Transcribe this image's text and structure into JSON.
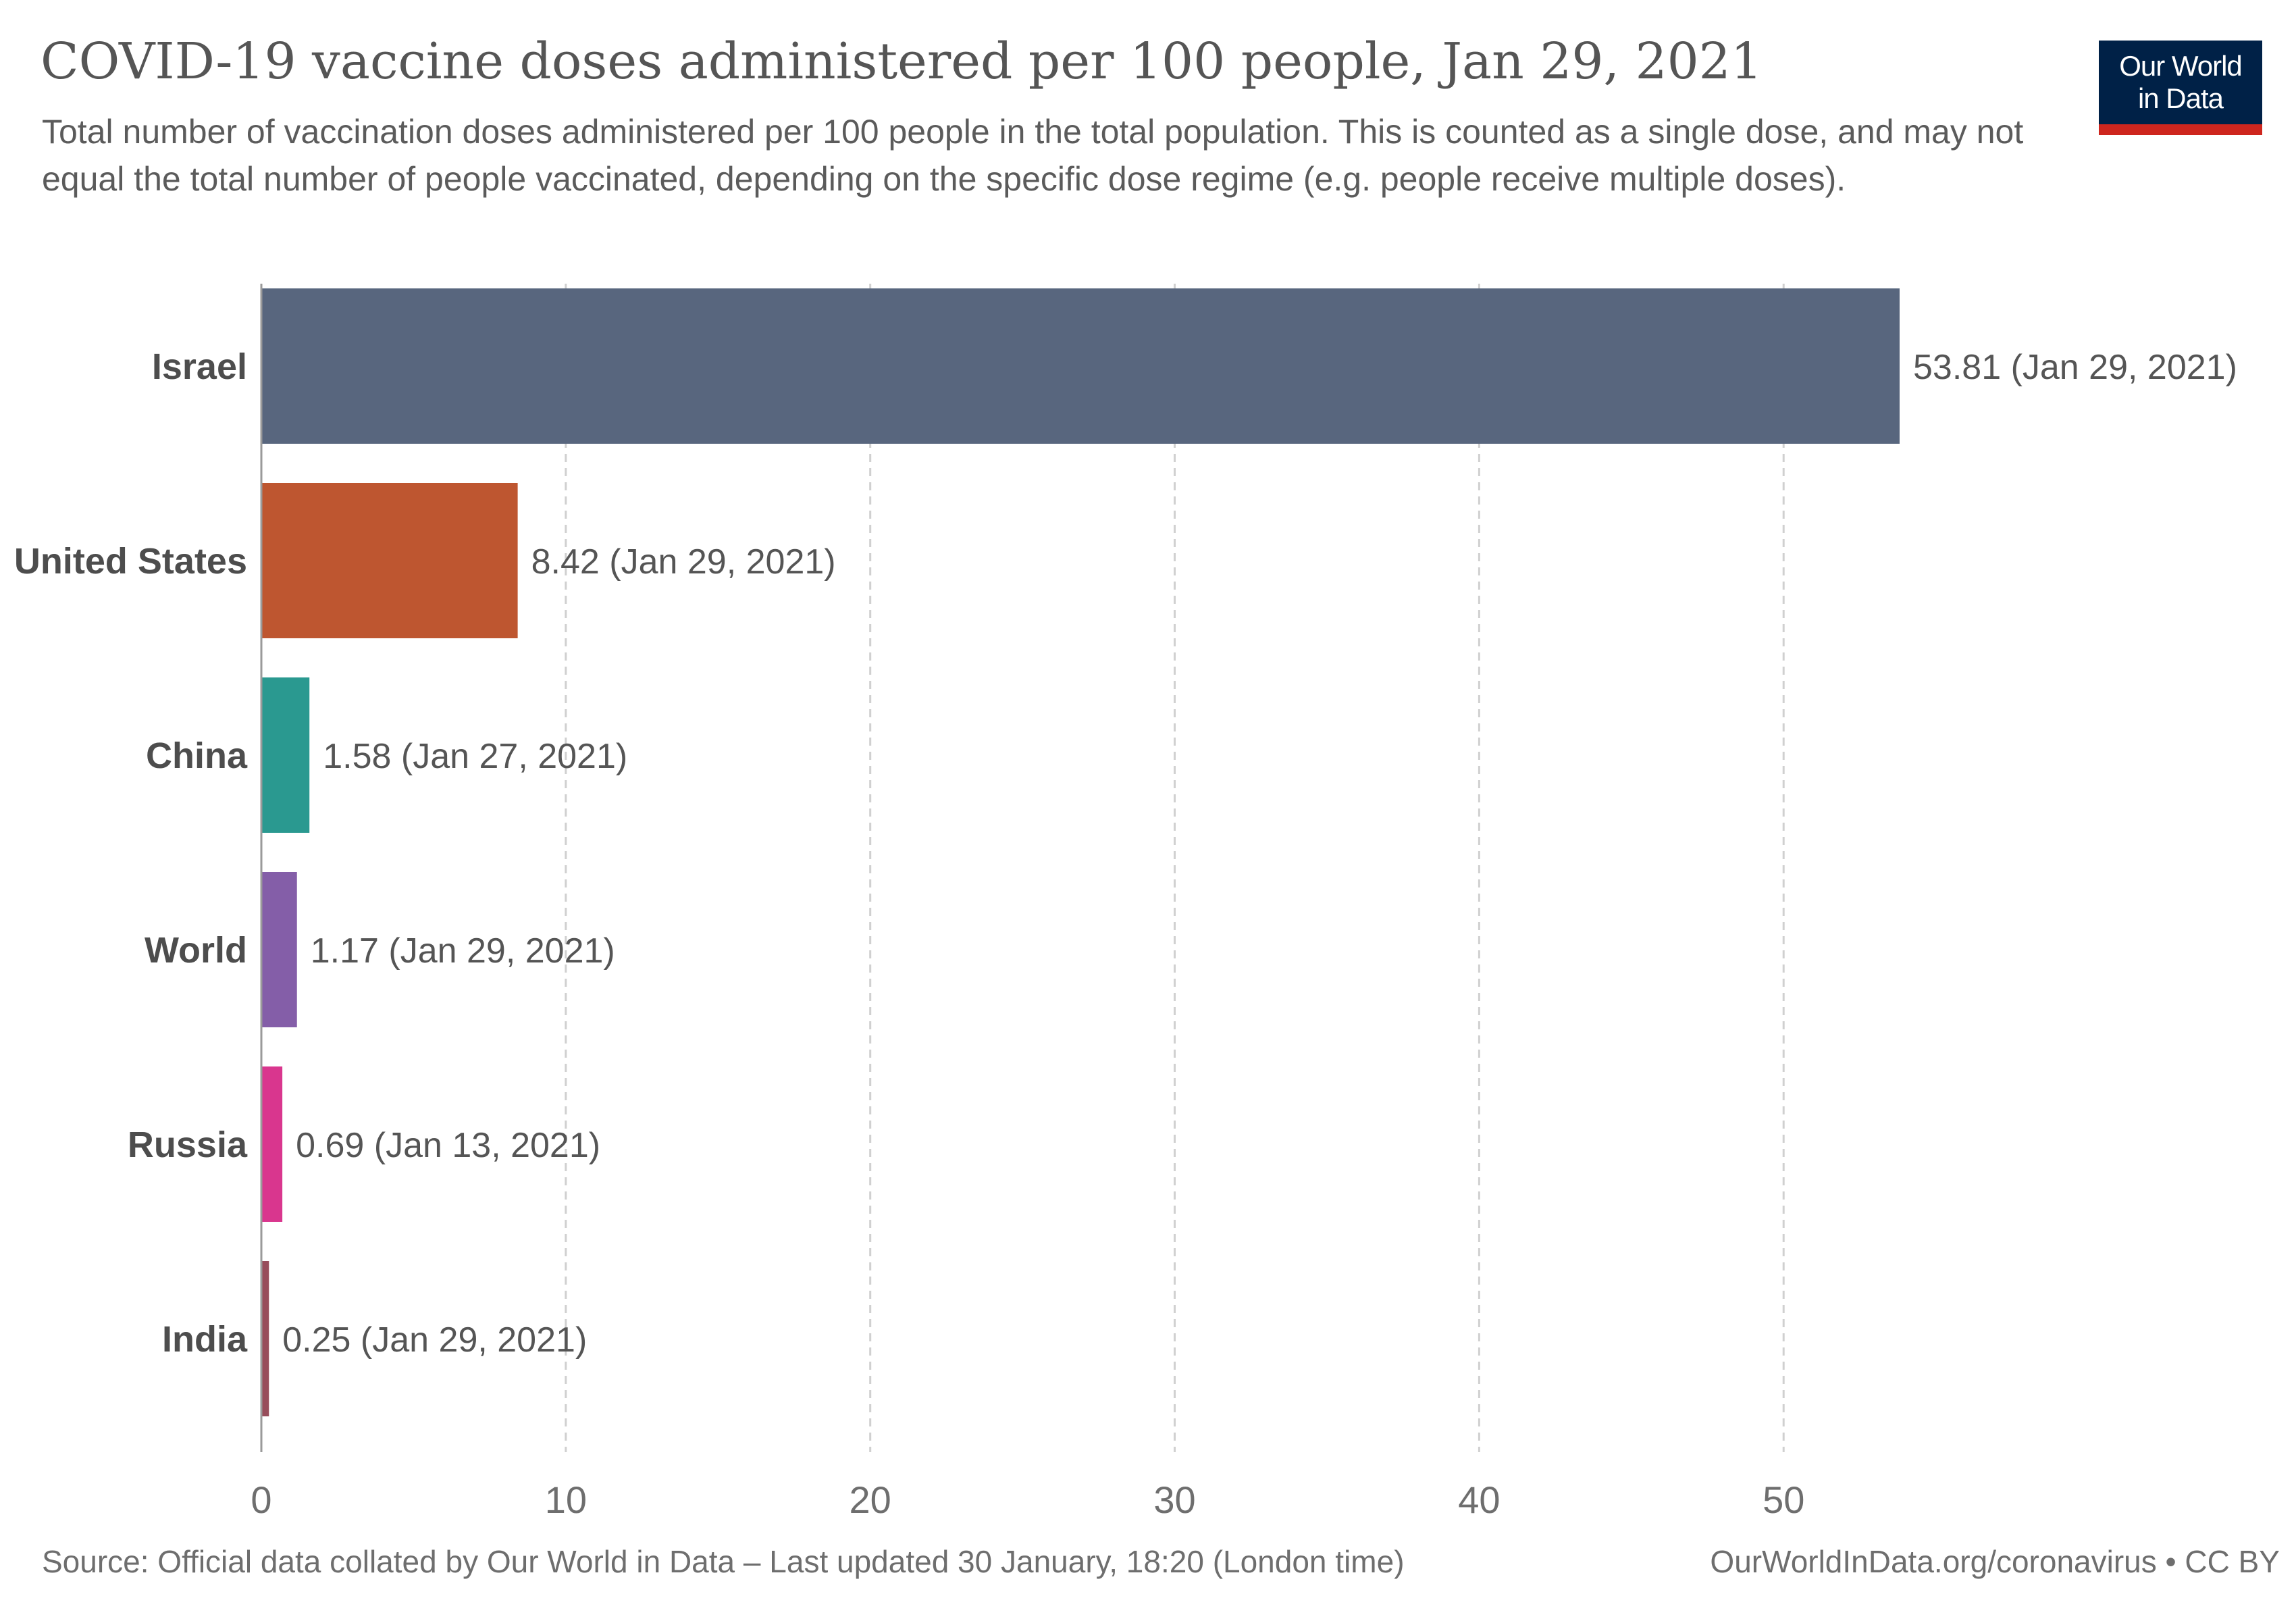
{
  "header": {
    "title": "COVID-19 vaccine doses administered per 100 people, Jan 29, 2021",
    "subtitle": "Total number of vaccination doses administered per 100 people in the total population. This is counted as a single dose, and may not equal the total number of people vaccinated, depending on the specific dose regime (e.g. people receive multiple doses).",
    "logo_line1": "Our World",
    "logo_line2": "in Data"
  },
  "footer": {
    "source": "Source: Official data collated by Our World in Data – Last updated 30 January, 18:20 (London time)",
    "link": "OurWorldInData.org/coronavirus • CC BY"
  },
  "colors": {
    "logo_background": "#002147",
    "logo_accent": "#ce261e",
    "grid": "#d0d0d0",
    "axis": "#9a9a9a",
    "label": "#4d4d4d",
    "value_label": "#555555"
  },
  "chart_data": {
    "type": "bar",
    "orientation": "horizontal",
    "categories": [
      "Israel",
      "United States",
      "China",
      "World",
      "Russia",
      "India"
    ],
    "values": [
      53.81,
      8.42,
      1.58,
      1.17,
      0.69,
      0.25
    ],
    "value_labels": [
      "53.81 (Jan 29, 2021)",
      "8.42 (Jan 29, 2021)",
      "1.58 (Jan 27, 2021)",
      "1.17 (Jan 29, 2021)",
      "0.69 (Jan 13, 2021)",
      "0.25 (Jan 29, 2021)"
    ],
    "bar_colors": [
      "#58667e",
      "#be5630",
      "#2a9990",
      "#845ea8",
      "#d9368e",
      "#984d5b"
    ],
    "xlim": [
      0,
      60
    ],
    "x_ticks": [
      0,
      10,
      20,
      30,
      40,
      50
    ],
    "grid": "vertical dashed"
  }
}
